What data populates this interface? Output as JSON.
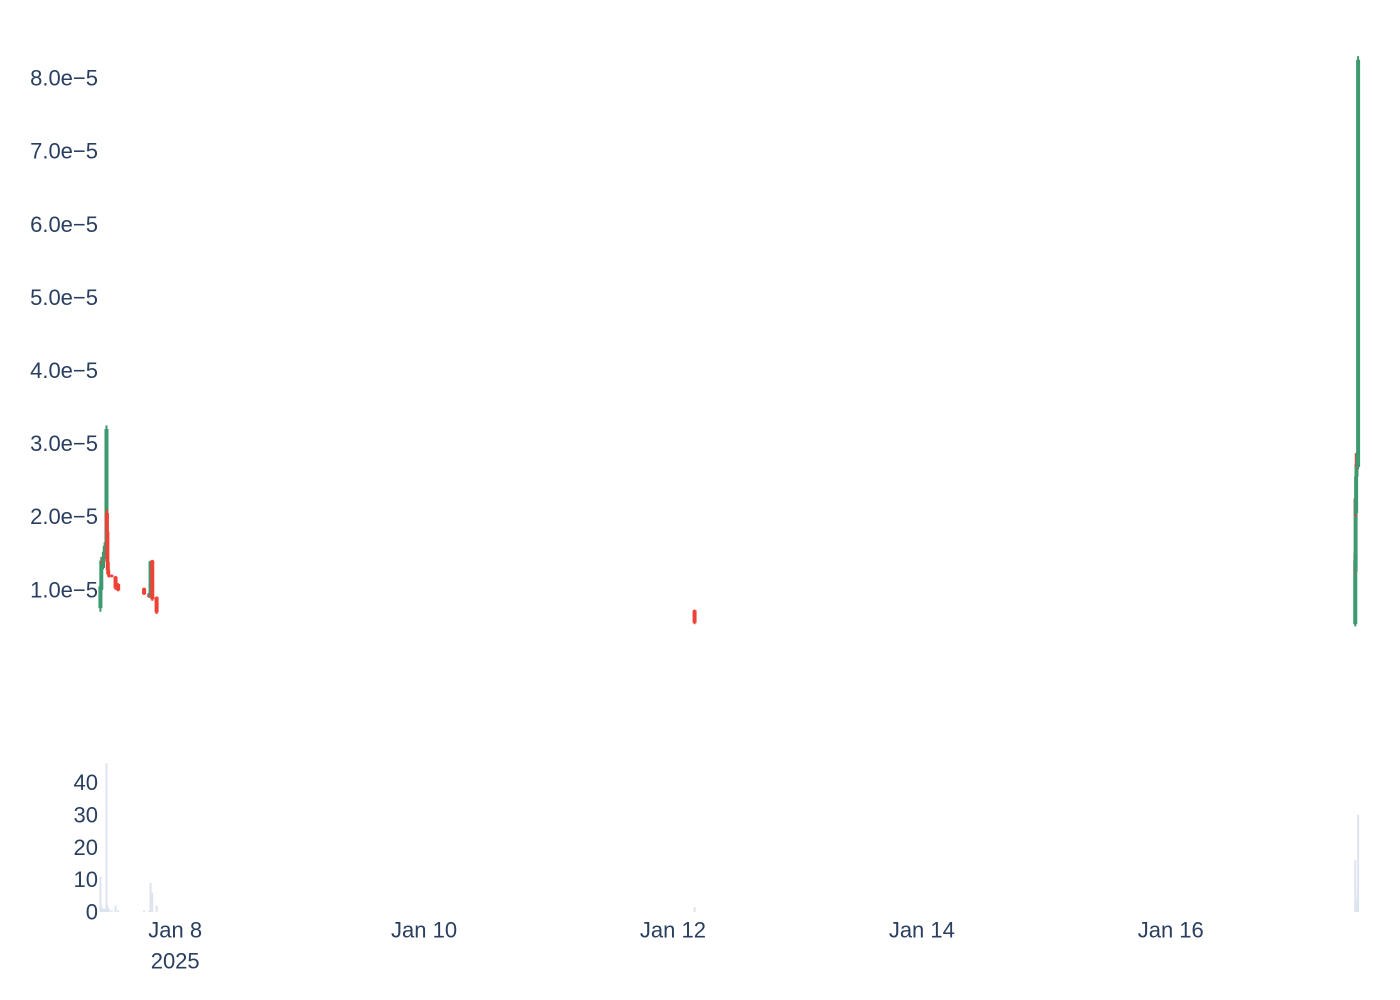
{
  "chart_data": {
    "type": "candlestick",
    "colors": {
      "increasing": "#3d9970",
      "decreasing": "#ef4136",
      "volume": "#dde4ef",
      "text": "#2a3f5f"
    },
    "x_ticks": [
      {
        "date": "2025-01-08",
        "label": "Jan 8",
        "sublabel": "2025"
      },
      {
        "date": "2025-01-10",
        "label": "Jan 10"
      },
      {
        "date": "2025-01-12",
        "label": "Jan 12"
      },
      {
        "date": "2025-01-14",
        "label": "Jan 14"
      },
      {
        "date": "2025-01-16",
        "label": "Jan 16"
      }
    ],
    "xlim": [
      "2025-01-07T09:30",
      "2025-01-17T12:30"
    ],
    "price": {
      "ylim": [
        -3.7e-06,
        8.52e-05
      ],
      "ticks": [
        {
          "value": 1e-05,
          "label": "1.0e−5"
        },
        {
          "value": 2e-05,
          "label": "2.0e−5"
        },
        {
          "value": 3e-05,
          "label": "3.0e−5"
        },
        {
          "value": 4e-05,
          "label": "4.0e−5"
        },
        {
          "value": 5e-05,
          "label": "5.0e−5"
        },
        {
          "value": 6e-05,
          "label": "6.0e−5"
        },
        {
          "value": 7e-05,
          "label": "7.0e−5"
        },
        {
          "value": 8e-05,
          "label": "8.0e−5"
        }
      ],
      "candles": [
        {
          "t": "2025-01-07T09:35",
          "o": 7.5e-06,
          "h": 1.1e-05,
          "l": 7e-06,
          "c": 1.05e-05
        },
        {
          "t": "2025-01-07T09:45",
          "o": 1e-05,
          "h": 1.45e-05,
          "l": 9.5e-06,
          "c": 1.4e-05
        },
        {
          "t": "2025-01-07T09:55",
          "o": 1.4e-05,
          "h": 1.45e-05,
          "l": 1.3e-05,
          "c": 1.35e-05
        },
        {
          "t": "2025-01-07T10:05",
          "o": 1.3e-05,
          "h": 1.45e-05,
          "l": 1.28e-05,
          "c": 1.42e-05
        },
        {
          "t": "2025-01-07T10:15",
          "o": 1.42e-05,
          "h": 1.55e-05,
          "l": 1.4e-05,
          "c": 1.52e-05
        },
        {
          "t": "2025-01-07T10:25",
          "o": 1.52e-05,
          "h": 1.63e-05,
          "l": 1.5e-05,
          "c": 1.6e-05
        },
        {
          "t": "2025-01-07T10:35",
          "o": 1.58e-05,
          "h": 1.68e-05,
          "l": 1.55e-05,
          "c": 1.65e-05
        },
        {
          "t": "2025-01-07T10:45",
          "o": 1.65e-05,
          "h": 3.25e-05,
          "l": 1.6e-05,
          "c": 3.2e-05
        },
        {
          "t": "2025-01-07T10:50",
          "o": 2.05e-05,
          "h": 2.1e-05,
          "l": 1.75e-05,
          "c": 1.8e-05
        },
        {
          "t": "2025-01-07T10:55",
          "o": 1.8e-05,
          "h": 1.82e-05,
          "l": 1.35e-05,
          "c": 1.38e-05
        },
        {
          "t": "2025-01-07T11:00",
          "o": 1.38e-05,
          "h": 1.4e-05,
          "l": 1.25e-05,
          "c": 1.27e-05
        },
        {
          "t": "2025-01-07T11:05",
          "o": 1.27e-05,
          "h": 1.28e-05,
          "l": 1.2e-05,
          "c": 1.21e-05
        },
        {
          "t": "2025-01-07T11:15",
          "o": 1.2e-05,
          "h": 1.22e-05,
          "l": 1.17e-05,
          "c": 1.18e-05
        },
        {
          "t": "2025-01-07T11:45",
          "o": 1.2e-05,
          "h": 1.21e-05,
          "l": 1.17e-05,
          "c": 1.18e-05
        },
        {
          "t": "2025-01-07T12:30",
          "o": 1.18e-05,
          "h": 1.19e-05,
          "l": 1e-05,
          "c": 1.02e-05
        },
        {
          "t": "2025-01-07T13:00",
          "o": 1.08e-05,
          "h": 1.09e-05,
          "l": 9.8e-06,
          "c": 9.9e-06
        },
        {
          "t": "2025-01-07T18:00",
          "o": 1.02e-05,
          "h": 1.03e-05,
          "l": 9.3e-06,
          "c": 9.4e-06
        },
        {
          "t": "2025-01-07T19:00",
          "o": 9.5e-06,
          "h": 9.6e-06,
          "l": 8.9e-06,
          "c": 9e-06
        },
        {
          "t": "2025-01-07T19:15",
          "o": 9e-06,
          "h": 1.4e-05,
          "l": 8.9e-06,
          "c": 1.39e-05
        },
        {
          "t": "2025-01-07T19:35",
          "o": 1.4e-05,
          "h": 1.41e-05,
          "l": 8.5e-06,
          "c": 8.7e-06
        },
        {
          "t": "2025-01-07T20:25",
          "o": 9e-06,
          "h": 9.1e-06,
          "l": 6.7e-06,
          "c": 6.9e-06
        },
        {
          "t": "2025-01-12T04:10",
          "o": 7.2e-06,
          "h": 7.3e-06,
          "l": 5.3e-06,
          "c": 5.5e-06
        },
        {
          "t": "2025-01-17T11:35",
          "o": 5.3e-06,
          "h": 1.5e-05,
          "l": 5e-06,
          "c": 1.4e-05
        },
        {
          "t": "2025-01-17T11:37",
          "o": 1.5e-05,
          "h": 1.52e-05,
          "l": 1.22e-05,
          "c": 1.25e-05
        },
        {
          "t": "2025-01-17T11:39",
          "o": 1.25e-05,
          "h": 2.3e-05,
          "l": 1.23e-05,
          "c": 2.25e-05
        },
        {
          "t": "2025-01-17T11:41",
          "o": 2.25e-05,
          "h": 2.87e-05,
          "l": 2e-05,
          "c": 2.05e-05
        },
        {
          "t": "2025-01-17T11:45",
          "o": 2.05e-05,
          "h": 2.7e-05,
          "l": 2.03e-05,
          "c": 2.55e-05
        },
        {
          "t": "2025-01-17T11:50",
          "o": 2.55e-05,
          "h": 2.85e-05,
          "l": 2.5e-05,
          "c": 2.72e-05
        },
        {
          "t": "2025-01-17T11:58",
          "o": 2.72e-05,
          "h": 2.78e-05,
          "l": 2.65e-05,
          "c": 2.68e-05
        },
        {
          "t": "2025-01-17T12:08",
          "o": 2.68e-05,
          "h": 8.3e-05,
          "l": 2.65e-05,
          "c": 8.25e-05
        }
      ]
    },
    "volume": {
      "ylim": [
        0,
        47
      ],
      "ticks": [
        {
          "value": 0,
          "label": "0"
        },
        {
          "value": 10,
          "label": "10"
        },
        {
          "value": 20,
          "label": "20"
        },
        {
          "value": 30,
          "label": "30"
        },
        {
          "value": 40,
          "label": "40"
        }
      ],
      "bars": [
        {
          "t": "2025-01-07T09:35",
          "v": 11
        },
        {
          "t": "2025-01-07T09:45",
          "v": 2
        },
        {
          "t": "2025-01-07T09:55",
          "v": 1
        },
        {
          "t": "2025-01-07T10:05",
          "v": 1
        },
        {
          "t": "2025-01-07T10:15",
          "v": 1
        },
        {
          "t": "2025-01-07T10:25",
          "v": 1
        },
        {
          "t": "2025-01-07T10:35",
          "v": 1
        },
        {
          "t": "2025-01-07T10:45",
          "v": 46
        },
        {
          "t": "2025-01-07T10:50",
          "v": 2
        },
        {
          "t": "2025-01-07T10:55",
          "v": 2
        },
        {
          "t": "2025-01-07T11:00",
          "v": 1
        },
        {
          "t": "2025-01-07T11:05",
          "v": 1
        },
        {
          "t": "2025-01-07T11:15",
          "v": 1
        },
        {
          "t": "2025-01-07T11:45",
          "v": 0.5
        },
        {
          "t": "2025-01-07T12:30",
          "v": 2
        },
        {
          "t": "2025-01-07T13:00",
          "v": 0.5
        },
        {
          "t": "2025-01-07T18:00",
          "v": 0.5
        },
        {
          "t": "2025-01-07T19:00",
          "v": 0.5
        },
        {
          "t": "2025-01-07T19:15",
          "v": 9
        },
        {
          "t": "2025-01-07T19:35",
          "v": 6
        },
        {
          "t": "2025-01-07T20:25",
          "v": 2
        },
        {
          "t": "2025-01-12T04:10",
          "v": 1.5
        },
        {
          "t": "2025-01-17T11:35",
          "v": 16
        },
        {
          "t": "2025-01-17T11:37",
          "v": 8
        },
        {
          "t": "2025-01-17T11:39",
          "v": 6
        },
        {
          "t": "2025-01-17T11:41",
          "v": 4
        },
        {
          "t": "2025-01-17T11:45",
          "v": 3
        },
        {
          "t": "2025-01-17T11:50",
          "v": 2
        },
        {
          "t": "2025-01-17T11:58",
          "v": 2
        },
        {
          "t": "2025-01-17T12:08",
          "v": 30
        }
      ]
    }
  }
}
